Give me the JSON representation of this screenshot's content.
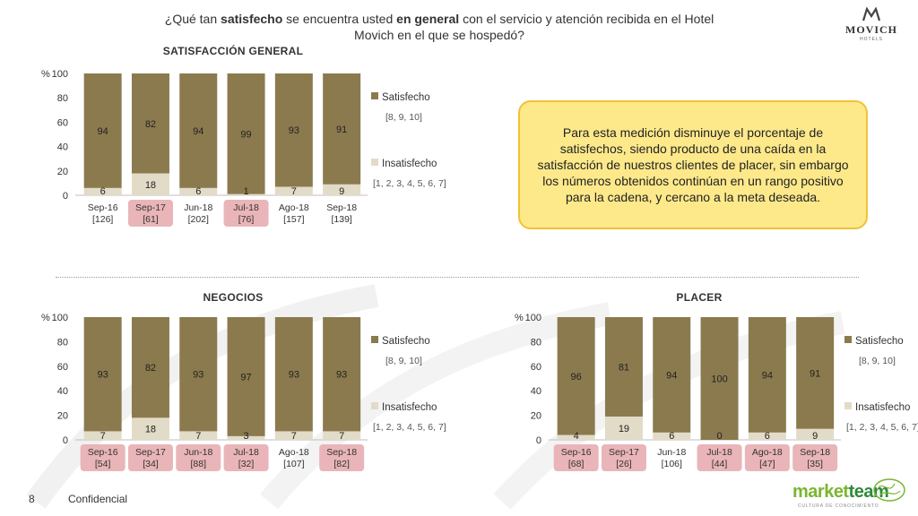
{
  "header": {
    "question_part1": "¿Qué tan ",
    "question_bold1": "satisfecho",
    "question_part2": " se encuentra usted ",
    "question_bold2": "en general",
    "question_part3": " con el servicio y atención recibida en el Hotel Movich en el que se hospedó?",
    "logo_name": "MOVICH",
    "logo_sub": "HOTELS"
  },
  "callout": {
    "text": "Para esta medición disminuye el porcentaje de satisfechos, siendo producto de una caída en la satisfacción de nuestros clientes de placer, sin embargo los números obtenidos continúan en un rango positivo para la cadena, y cercano a la meta deseada."
  },
  "footer": {
    "page_number": "8",
    "confidential": "Confidencial",
    "brand_a": "market",
    "brand_b": "team",
    "brand_sub": "CULTURA DE CONOCIMIENTO"
  },
  "colors": {
    "satisfied": "#8b7a4e",
    "unsatisfied": "#e2dbc7",
    "highlight": "#e9b5b8",
    "callout_bg": "#fde98a",
    "callout_border": "#f0c235"
  },
  "chart_data": [
    {
      "type": "bar",
      "stacked": true,
      "title": "SATISFACCIÓN GENERAL",
      "ylabel": "%",
      "ylim": [
        0,
        100
      ],
      "yticks": [
        "0",
        "20",
        "40",
        "60",
        "80",
        "100"
      ],
      "categories": [
        "Sep-16",
        "Sep-17",
        "Jun-18",
        "Jul-18",
        "Ago-18",
        "Sep-18"
      ],
      "bases": [
        "[126]",
        "[61]",
        "[202]",
        "[76]",
        "[157]",
        "[139]"
      ],
      "highlighted": [
        false,
        true,
        false,
        true,
        false,
        false
      ],
      "series": [
        {
          "name": "Insatisfecho",
          "detail": "[1, 2, 3, 4, 5, 6, 7]",
          "values": [
            6,
            18,
            6,
            1,
            7,
            9
          ]
        },
        {
          "name": "Satisfecho",
          "detail": "[8, 9, 10]",
          "values": [
            94,
            82,
            94,
            99,
            93,
            91
          ]
        }
      ]
    },
    {
      "type": "bar",
      "stacked": true,
      "title": "NEGOCIOS",
      "ylabel": "%",
      "ylim": [
        0,
        100
      ],
      "yticks": [
        "0",
        "20",
        "40",
        "60",
        "80",
        "100"
      ],
      "categories": [
        "Sep-16",
        "Sep-17",
        "Jun-18",
        "Jul-18",
        "Ago-18",
        "Sep-18"
      ],
      "bases": [
        "[54]",
        "[34]",
        "[88]",
        "[32]",
        "[107]",
        "[82]"
      ],
      "highlighted": [
        true,
        true,
        true,
        true,
        false,
        true
      ],
      "series": [
        {
          "name": "Insatisfecho",
          "detail": "[1, 2, 3, 4, 5, 6, 7]",
          "values": [
            7,
            18,
            7,
            3,
            7,
            7
          ]
        },
        {
          "name": "Satisfecho",
          "detail": "[8, 9, 10]",
          "values": [
            93,
            82,
            93,
            97,
            93,
            93
          ]
        }
      ]
    },
    {
      "type": "bar",
      "stacked": true,
      "title": "PLACER",
      "ylabel": "%",
      "ylim": [
        0,
        100
      ],
      "yticks": [
        "0",
        "20",
        "40",
        "60",
        "80",
        "100"
      ],
      "categories": [
        "Sep-16",
        "Sep-17",
        "Jun-18",
        "Jul-18",
        "Ago-18",
        "Sep-18"
      ],
      "bases": [
        "[68]",
        "[26]",
        "[106]",
        "[44]",
        "[47]",
        "[35]"
      ],
      "highlighted": [
        true,
        true,
        false,
        true,
        true,
        true
      ],
      "series": [
        {
          "name": "Insatisfecho",
          "detail": "[1, 2, 3, 4, 5, 6, 7]",
          "values": [
            4,
            19,
            6,
            0,
            6,
            9
          ]
        },
        {
          "name": "Satisfecho",
          "detail": "[8, 9, 10]",
          "values": [
            96,
            81,
            94,
            100,
            94,
            91
          ]
        }
      ]
    }
  ]
}
